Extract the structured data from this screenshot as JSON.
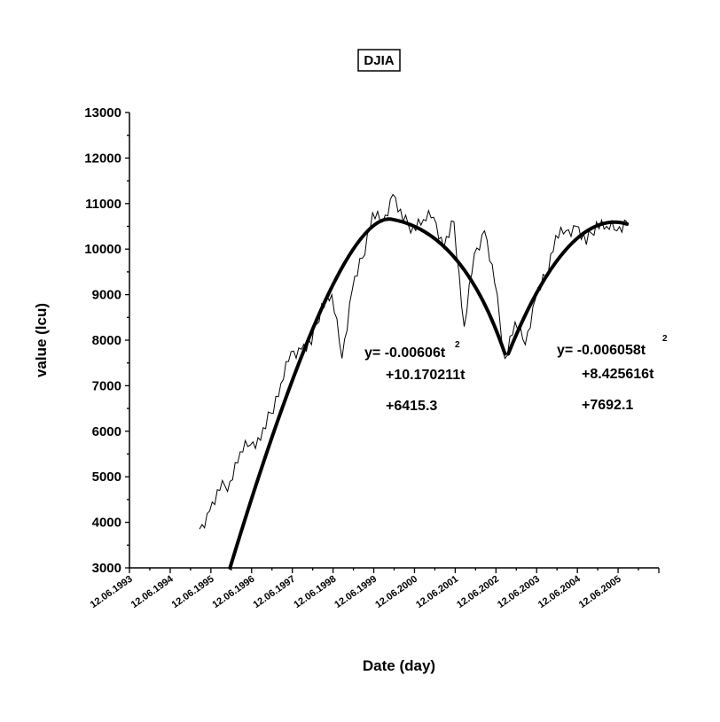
{
  "chart_data": {
    "type": "line",
    "title": "DJIA",
    "xlabel": "Date (day)",
    "ylabel": "value (lcu)",
    "ylim": [
      3000,
      13000
    ],
    "xlim": [
      "12.06.1993",
      "12.06.2006"
    ],
    "yticks": [
      "3000",
      "4000",
      "5000",
      "6000",
      "7000",
      "8000",
      "9000",
      "10000",
      "11000",
      "12000",
      "13000"
    ],
    "xticks": [
      "12.06.1993",
      "12.06.1994",
      "12.06.1995",
      "12.06.1996",
      "12.06.1997",
      "12.06.1998",
      "12.06.1999",
      "12.06.2000",
      "12.06.2001",
      "12.06.2002",
      "12.06.2003",
      "12.06.2004",
      "12.06.2005"
    ],
    "grid": false,
    "series": [
      {
        "values_x": [
          "1995-03",
          "1995-06",
          "1995-09",
          "1995-12",
          "1996-03",
          "1996-06",
          "1996-09",
          "1996-12",
          "1997-03",
          "1997-06",
          "1997-09",
          "1997-12",
          "1998-03",
          "1998-06",
          "1998-09",
          "1998-12",
          "1999-03",
          "1999-06",
          "1999-09",
          "1999-12",
          "2000-03",
          "2000-06",
          "2000-09",
          "2000-12",
          "2001-03",
          "2001-06",
          "2001-09",
          "2001-12",
          "2002-03",
          "2002-06",
          "2002-09",
          "2002-12",
          "2003-03",
          "2003-06",
          "2003-09",
          "2003-12",
          "2004-03",
          "2004-06",
          "2004-09",
          "2004-12",
          "2005-03",
          "2005-06",
          "2005-09"
        ],
        "values_y": [
          3850,
          4250,
          4700,
          4900,
          5550,
          5700,
          5800,
          6400,
          7050,
          7750,
          7800,
          7900,
          8800,
          9000,
          7600,
          9100,
          9800,
          10800,
          10600,
          11200,
          10600,
          10500,
          10650,
          10700,
          10000,
          10600,
          8300,
          9900,
          10400,
          9250,
          7600,
          8400,
          7900,
          8900,
          9400,
          10300,
          10400,
          10500,
          10100,
          10600,
          10500,
          10400,
          10600
        ]
      },
      {
        "values_x": [
          "1995-12",
          "1999-12",
          "2002-09"
        ],
        "values_y": [
          3000,
          10650,
          7700
        ]
      },
      {
        "values_x": [
          "2002-10",
          "2005-09"
        ],
        "values_y": [
          7700,
          10550
        ]
      }
    ],
    "annotations": [
      {
        "lines": [
          "y= -0.00606t",
          "+10.170211t",
          "+6415.3"
        ],
        "superscript": "2"
      },
      {
        "lines": [
          "y= -0.006058t",
          "+8.425616t",
          "+7692.1"
        ],
        "superscript": "2"
      }
    ]
  }
}
